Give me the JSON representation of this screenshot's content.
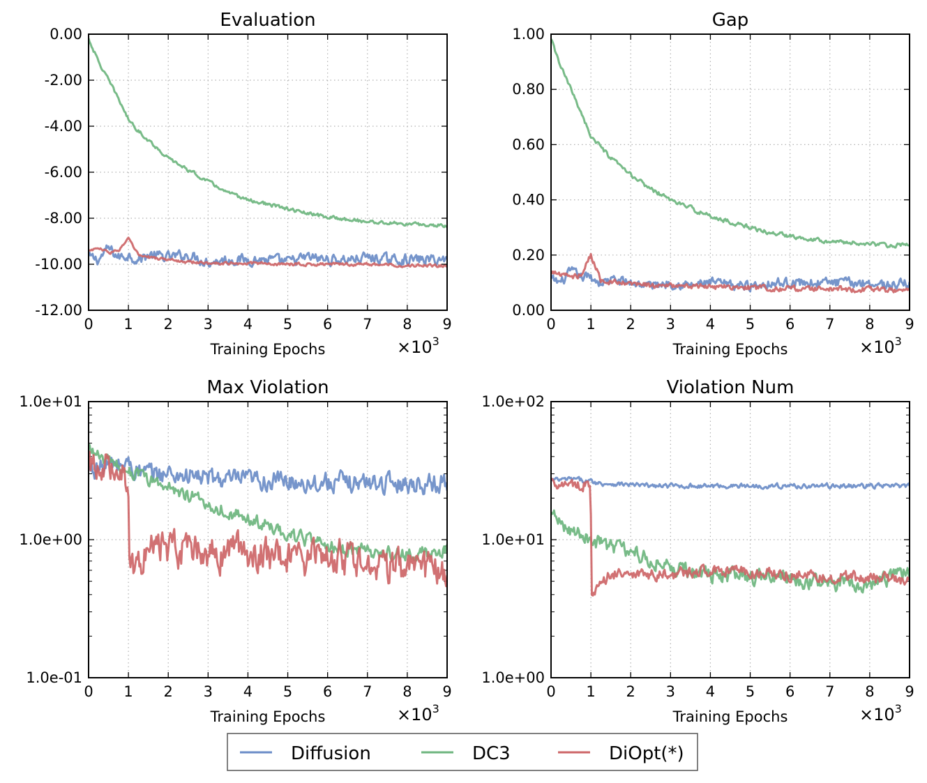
{
  "colors": {
    "diffusion": "#6a8cc7",
    "dc3": "#6db57e",
    "diopt": "#cd6567"
  },
  "legend": [
    {
      "key": "diffusion",
      "label": "Diffusion"
    },
    {
      "key": "dc3",
      "label": "DC3"
    },
    {
      "key": "diopt",
      "label": "DiOpt(*)"
    }
  ],
  "chart_data": [
    {
      "type": "line",
      "title": "Evaluation",
      "xlabel": "Training Epochs",
      "x_multiplier": "×10",
      "x_multiplier_exp": "3",
      "xlim": [
        0,
        9
      ],
      "ylim": [
        -12,
        0
      ],
      "yscale": "linear",
      "xticks": [
        "0",
        "1",
        "2",
        "3",
        "4",
        "5",
        "6",
        "7",
        "8",
        "9"
      ],
      "yticks": [
        "0.00",
        "-2.00",
        "-4.00",
        "-6.00",
        "-8.00",
        "-10.00",
        "-12.00"
      ],
      "ytick_values": [
        0,
        -2,
        -4,
        -6,
        -8,
        -10,
        -12
      ],
      "grid": true,
      "x": [
        0,
        0.25,
        0.5,
        0.75,
        1,
        1.25,
        1.5,
        2,
        2.5,
        3,
        3.5,
        4,
        4.5,
        5,
        5.5,
        6,
        6.5,
        7,
        7.5,
        8,
        8.5,
        9
      ],
      "series": [
        {
          "name": "Diffusion",
          "key": "diffusion",
          "noise": 0.18,
          "values": [
            -9.7,
            -9.8,
            -9.3,
            -9.7,
            -9.6,
            -9.8,
            -9.6,
            -9.7,
            -9.6,
            -9.9,
            -9.8,
            -9.8,
            -9.8,
            -9.9,
            -9.7,
            -9.8,
            -9.8,
            -9.7,
            -9.8,
            -9.8,
            -9.8,
            -9.8
          ]
        },
        {
          "name": "DC3",
          "key": "dc3",
          "noise": 0.06,
          "values": [
            -0.2,
            -1.2,
            -2.0,
            -2.8,
            -3.7,
            -4.2,
            -4.6,
            -5.4,
            -5.9,
            -6.4,
            -6.9,
            -7.2,
            -7.4,
            -7.6,
            -7.8,
            -7.95,
            -8.05,
            -8.15,
            -8.2,
            -8.25,
            -8.3,
            -8.3
          ]
        },
        {
          "name": "DiOpt(*)",
          "key": "diopt",
          "noise": 0.05,
          "values": [
            -9.4,
            -9.3,
            -9.5,
            -9.4,
            -8.9,
            -9.6,
            -9.7,
            -9.8,
            -9.9,
            -9.95,
            -9.95,
            -9.95,
            -9.98,
            -10.0,
            -10.0,
            -10.0,
            -10.0,
            -10.0,
            -10.02,
            -10.05,
            -10.05,
            -10.08
          ]
        }
      ]
    },
    {
      "type": "line",
      "title": "Gap",
      "xlabel": "Training Epochs",
      "x_multiplier": "×10",
      "x_multiplier_exp": "3",
      "xlim": [
        0,
        9
      ],
      "ylim": [
        0,
        1
      ],
      "yscale": "linear",
      "xticks": [
        "0",
        "1",
        "2",
        "3",
        "4",
        "5",
        "6",
        "7",
        "8",
        "9"
      ],
      "yticks": [
        "1.00",
        "0.80",
        "0.60",
        "0.40",
        "0.20",
        "0.00"
      ],
      "ytick_values": [
        1,
        0.8,
        0.6,
        0.4,
        0.2,
        0
      ],
      "grid": true,
      "x": [
        0,
        0.25,
        0.5,
        0.75,
        1,
        1.25,
        1.5,
        2,
        2.5,
        3,
        3.5,
        4,
        4.5,
        5,
        5.5,
        6,
        6.5,
        7,
        7.5,
        8,
        8.5,
        9
      ],
      "series": [
        {
          "name": "Diffusion",
          "key": "diffusion",
          "noise": 0.014,
          "values": [
            0.11,
            0.1,
            0.14,
            0.12,
            0.12,
            0.1,
            0.11,
            0.1,
            0.09,
            0.1,
            0.09,
            0.1,
            0.09,
            0.09,
            0.1,
            0.1,
            0.1,
            0.1,
            0.1,
            0.1,
            0.09,
            0.1
          ]
        },
        {
          "name": "DC3",
          "key": "dc3",
          "noise": 0.006,
          "values": [
            0.98,
            0.88,
            0.8,
            0.72,
            0.63,
            0.59,
            0.55,
            0.49,
            0.44,
            0.4,
            0.37,
            0.34,
            0.32,
            0.3,
            0.28,
            0.27,
            0.26,
            0.25,
            0.245,
            0.24,
            0.235,
            0.235
          ]
        },
        {
          "name": "DiOpt(*)",
          "key": "diopt",
          "noise": 0.008,
          "values": [
            0.14,
            0.13,
            0.12,
            0.13,
            0.2,
            0.11,
            0.1,
            0.095,
            0.09,
            0.088,
            0.086,
            0.085,
            0.083,
            0.082,
            0.08,
            0.08,
            0.078,
            0.077,
            0.076,
            0.075,
            0.074,
            0.072
          ]
        }
      ]
    },
    {
      "type": "line",
      "title": "Max Violation",
      "xlabel": "Training Epochs",
      "x_multiplier": "×10",
      "x_multiplier_exp": "3",
      "xlim": [
        0,
        9
      ],
      "ylim": [
        0.1,
        10
      ],
      "yscale": "log",
      "xticks": [
        "0",
        "1",
        "2",
        "3",
        "4",
        "5",
        "6",
        "7",
        "8",
        "9"
      ],
      "yticks": [
        "1.0e+01",
        "1.0e+00",
        "1.0e-01"
      ],
      "ytick_values": [
        10,
        1,
        0.1
      ],
      "grid": true,
      "x": [
        0,
        0.25,
        0.5,
        0.75,
        0.98,
        1.02,
        1.1,
        1.25,
        1.5,
        2,
        2.5,
        3,
        3.5,
        4,
        4.5,
        5,
        5.5,
        6,
        6.5,
        7,
        7.5,
        8,
        8.5,
        9
      ],
      "series": [
        {
          "name": "Diffusion",
          "key": "diffusion",
          "noise": 0.05,
          "values": [
            3.2,
            3.3,
            3.4,
            3.5,
            3.6,
            3.5,
            3.3,
            3.1,
            3.0,
            3.0,
            2.9,
            2.8,
            2.7,
            2.7,
            2.65,
            2.65,
            2.6,
            2.6,
            2.6,
            2.6,
            2.6,
            2.55,
            2.55,
            2.6
          ]
        },
        {
          "name": "DC3",
          "key": "dc3",
          "noise": 0.035,
          "values": [
            4.6,
            4.0,
            3.6,
            3.4,
            3.2,
            3.15,
            3.1,
            2.9,
            2.7,
            2.4,
            2.1,
            1.8,
            1.6,
            1.4,
            1.25,
            1.1,
            0.98,
            0.9,
            0.85,
            0.82,
            0.8,
            0.78,
            0.8,
            0.85
          ]
        },
        {
          "name": "DiOpt(*)",
          "key": "diopt",
          "noise": 0.09,
          "values": [
            3.3,
            3.5,
            3.6,
            3.4,
            3.0,
            0.75,
            0.62,
            0.7,
            0.82,
            0.85,
            0.8,
            0.75,
            0.8,
            0.82,
            0.78,
            0.7,
            0.72,
            0.75,
            0.72,
            0.7,
            0.66,
            0.62,
            0.6,
            0.6
          ]
        }
      ]
    },
    {
      "type": "line",
      "title": "Violation Num",
      "xlabel": "Training Epochs",
      "x_multiplier": "×10",
      "x_multiplier_exp": "3",
      "xlim": [
        0,
        9
      ],
      "ylim": [
        1,
        100
      ],
      "yscale": "log",
      "xticks": [
        "0",
        "1",
        "2",
        "3",
        "4",
        "5",
        "6",
        "7",
        "8",
        "9"
      ],
      "yticks": [
        "1.0e+02",
        "1.0e+01",
        "1.0e+00"
      ],
      "ytick_values": [
        100,
        10,
        1
      ],
      "grid": true,
      "x": [
        0,
        0.25,
        0.5,
        0.75,
        0.98,
        1.02,
        1.1,
        1.3,
        1.5,
        2,
        2.5,
        3,
        3.5,
        4,
        4.5,
        5,
        5.5,
        6,
        6.5,
        7,
        7.5,
        8,
        8.5,
        9
      ],
      "series": [
        {
          "name": "Diffusion",
          "key": "diffusion",
          "noise": 0.012,
          "values": [
            27,
            27,
            27.5,
            27,
            26.5,
            26.5,
            26,
            25.5,
            25.5,
            25,
            24.5,
            24.5,
            24.5,
            24.5,
            24.5,
            24.5,
            24.5,
            24.5,
            24.5,
            24.5,
            24.5,
            24.5,
            24.5,
            24.5
          ]
        },
        {
          "name": "DC3",
          "key": "dc3",
          "noise": 0.04,
          "values": [
            15,
            13,
            12,
            11,
            10.2,
            10,
            9.8,
            9.3,
            9,
            8.2,
            7.2,
            6.3,
            5.9,
            5.6,
            5.5,
            5.4,
            5.3,
            5.1,
            4.9,
            4.8,
            4.8,
            4.9,
            5.2,
            5.8
          ]
        },
        {
          "name": "DiOpt(*)",
          "key": "diopt",
          "noise": 0.03,
          "values": [
            26,
            26,
            25.5,
            25,
            24.5,
            3.7,
            3.9,
            5.0,
            5.6,
            5.7,
            5.5,
            5.6,
            5.8,
            5.9,
            5.9,
            5.8,
            5.7,
            5.6,
            5.5,
            5.4,
            5.3,
            5.3,
            5.2,
            5.0
          ]
        }
      ]
    }
  ]
}
